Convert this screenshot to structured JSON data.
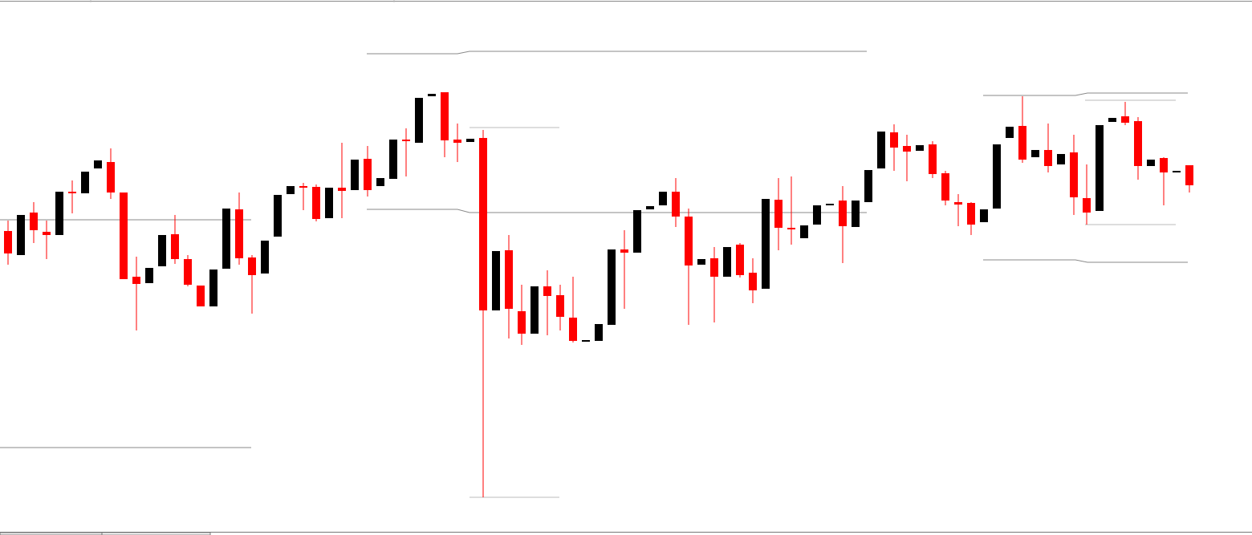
{
  "chart_data": {
    "type": "candlestick",
    "open": [
      379,
      349,
      402,
      378,
      374,
      428,
      426,
      457,
      465,
      427,
      322,
      314,
      335,
      375,
      344,
      311,
      285,
      332,
      406,
      346,
      326,
      372,
      425,
      435,
      434,
      395,
      433,
      430,
      469,
      435,
      444,
      493,
      489,
      547,
      552,
      493,
      490,
      495,
      280,
      355,
      279,
      251,
      310,
      299,
      271,
      242,
      242,
      262,
      356,
      352,
      406,
      411,
      428,
      397,
      337,
      345,
      322,
      362,
      327,
      307,
      418,
      383,
      370,
      387,
      411,
      417,
      384,
      415,
      457,
      502,
      485,
      479,
      487,
      451,
      415,
      414,
      390,
      407,
      495,
      510,
      471,
      480,
      462,
      477,
      420,
      404,
      515,
      522,
      516,
      460,
      470,
      452,
      461
    ],
    "high": [
      392,
      399,
      415,
      392,
      428,
      442,
      453,
      467,
      482,
      427,
      347,
      333,
      374,
      399,
      349,
      311,
      331,
      407,
      427,
      349,
      367,
      424,
      435,
      439,
      437,
      433,
      489,
      468,
      485,
      445,
      493,
      507,
      545,
      550,
      552,
      513,
      494,
      505,
      354,
      374,
      312,
      310,
      330,
      312,
      322,
      243,
      263,
      356,
      380,
      405,
      410,
      428,
      445,
      407,
      344,
      359,
      359,
      364,
      345,
      419,
      445,
      447,
      386,
      411,
      413,
      435,
      417,
      455,
      503,
      512,
      499,
      486,
      491,
      454,
      425,
      415,
      406,
      487,
      509,
      547,
      480,
      513,
      475,
      499,
      462,
      511,
      520,
      540,
      521,
      468,
      471,
      454,
      461
    ],
    "low": [
      337,
      349,
      364,
      344,
      374,
      401,
      426,
      457,
      419,
      319,
      255,
      314,
      335,
      338,
      310,
      285,
      285,
      332,
      337,
      276,
      326,
      372,
      425,
      405,
      391,
      395,
      395,
      430,
      422,
      435,
      444,
      447,
      489,
      547,
      471,
      465,
      490,
      47,
      280,
      245,
      237,
      251,
      249,
      255,
      240,
      242,
      242,
      262,
      282,
      352,
      406,
      411,
      384,
      262,
      337,
      265,
      322,
      321,
      289,
      307,
      355,
      362,
      370,
      387,
      411,
      339,
      384,
      415,
      457,
      454,
      441,
      479,
      445,
      411,
      385,
      374,
      390,
      407,
      495,
      464,
      471,
      452,
      462,
      399,
      387,
      404,
      515,
      511,
      443,
      460,
      411,
      452,
      427
    ],
    "close": [
      351,
      399,
      380,
      374,
      428,
      426,
      453,
      467,
      427,
      319,
      313,
      333,
      374,
      344,
      312,
      285,
      331,
      407,
      345,
      324,
      367,
      424,
      435,
      433,
      394,
      433,
      429,
      468,
      430,
      445,
      493,
      491,
      545,
      550,
      492,
      489,
      494,
      280,
      354,
      282,
      251,
      310,
      298,
      272,
      242,
      243,
      263,
      356,
      352,
      405,
      410,
      428,
      397,
      336,
      344,
      322,
      359,
      324,
      305,
      419,
      383,
      381,
      386,
      411,
      413,
      385,
      417,
      455,
      503,
      483,
      478,
      486,
      450,
      417,
      412,
      387,
      406,
      487,
      509,
      468,
      480,
      460,
      475,
      421,
      402,
      511,
      520,
      514,
      460,
      468,
      452,
      454,
      436
    ],
    "ylim": [
      0,
      667
    ],
    "up_color": "#000000",
    "down_color": "#ff0000"
  }
}
